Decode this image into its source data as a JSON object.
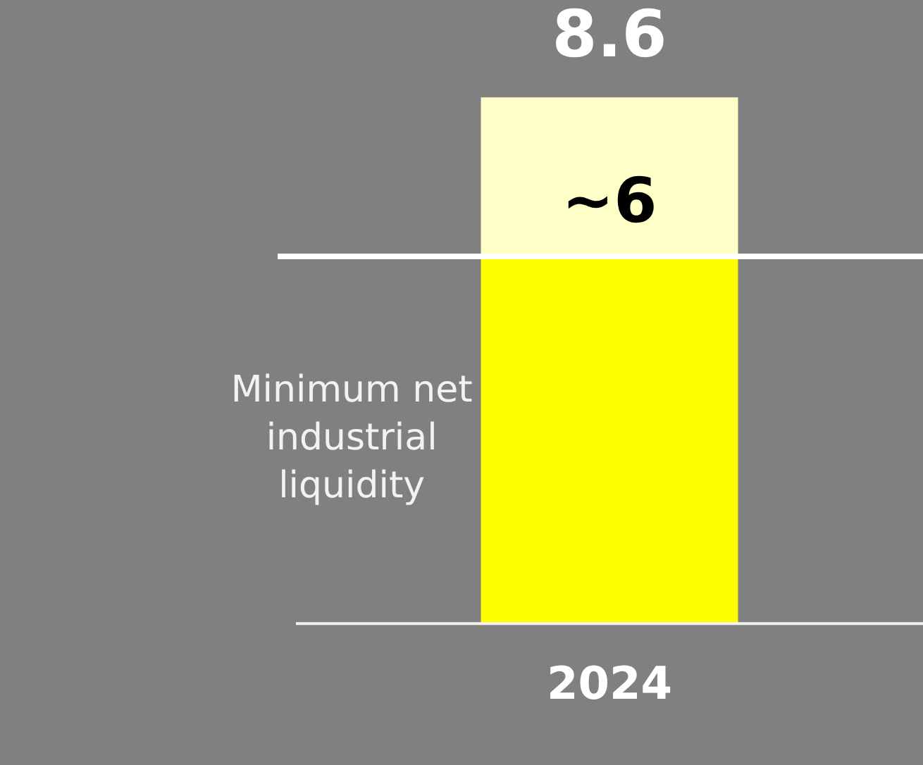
{
  "chart_data": {
    "type": "bar",
    "stacked": true,
    "categories": [
      "2024"
    ],
    "series": [
      {
        "name": "Minimum net industrial liquidity",
        "color": "#ffff00",
        "values": [
          6
        ],
        "value_labels": [
          "~6"
        ]
      },
      {
        "color": "#ffffc8",
        "values": [
          2.6
        ]
      }
    ],
    "totals": [
      "8.6"
    ],
    "ref_lines": [
      {
        "axis": "y",
        "value": 6,
        "color": "#ffffff"
      }
    ],
    "tick_labels": "x",
    "grid": false,
    "legend": false
  }
}
